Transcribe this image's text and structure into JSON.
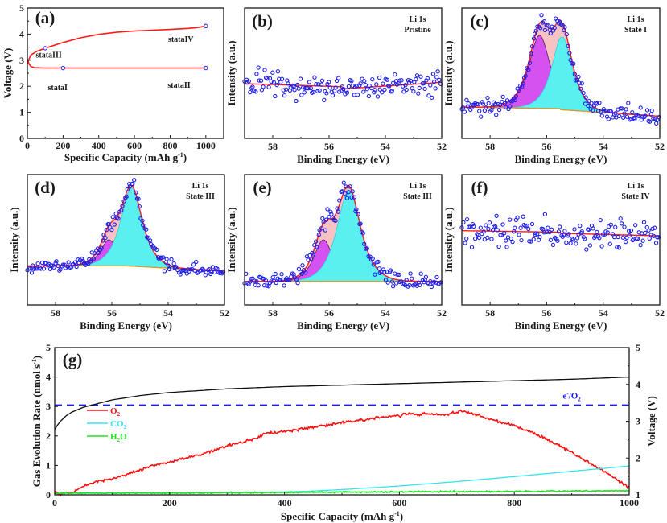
{
  "figure": {
    "colors": {
      "axis": "#1a1a1a",
      "fit": "#ff1a1a",
      "points": "#1f1fe6",
      "envelope_fill": "#f6c2c2",
      "peak1_fill": "#d652f0",
      "peak1_edge": "#5a1a6a",
      "peak2_fill": "#5af0f0",
      "peak2_edge": "#30d0e0",
      "background": "#e6961e",
      "o2": "#ff1010",
      "co2": "#30e6f0",
      "h2o": "#20e020",
      "voltage": "#111111",
      "ref_dash": "#1a1aff"
    }
  },
  "chart_data": [
    {
      "id": "a",
      "panel_label": "(a)",
      "type": "line",
      "xlabel": "Specific Capacity (mAh g",
      "xlabel_sup": "-1",
      "xlabel_end": ")",
      "ylabel": "Voltage (V)",
      "xlim": [
        0,
        1100
      ],
      "ylim": [
        0,
        5
      ],
      "xticks": [
        0,
        200,
        400,
        600,
        800,
        1000
      ],
      "yticks": [
        0,
        1,
        2,
        3,
        4,
        5
      ],
      "grid": false,
      "series": [
        {
          "name": "discharge",
          "x": [
            0,
            5,
            10,
            20,
            40,
            100,
            200,
            400,
            600,
            800,
            1000
          ],
          "y": [
            3.05,
            2.95,
            2.85,
            2.76,
            2.71,
            2.7,
            2.7,
            2.7,
            2.7,
            2.7,
            2.7
          ]
        },
        {
          "name": "charge",
          "x": [
            0,
            5,
            10,
            20,
            50,
            100,
            200,
            300,
            400,
            500,
            600,
            700,
            800,
            900,
            950,
            1000
          ],
          "y": [
            2.85,
            2.95,
            3.05,
            3.2,
            3.33,
            3.46,
            3.68,
            3.86,
            3.99,
            4.07,
            4.12,
            4.15,
            4.18,
            4.22,
            4.25,
            4.31
          ]
        }
      ],
      "markers": [
        {
          "x": 100,
          "y": 3.46
        },
        {
          "x": 200,
          "y": 2.7
        },
        {
          "x": 1000,
          "y": 2.7
        },
        {
          "x": 1000,
          "y": 4.31
        }
      ],
      "annotations": [
        {
          "text": "stataI",
          "x": 170,
          "y": 1.85
        },
        {
          "text": "stataII",
          "x": 850,
          "y": 1.95
        },
        {
          "text": "stataIII",
          "x": 120,
          "y": 3.1
        },
        {
          "text": "stataIV",
          "x": 860,
          "y": 3.7
        }
      ]
    },
    {
      "id": "b",
      "panel_label": "(b)",
      "type": "scatter",
      "title_lines": [
        "Li 1s",
        "Pristine"
      ],
      "xlabel": "Binding Energy (eV)",
      "ylabel": "Intensity (a.u.)",
      "xlim": [
        59,
        52
      ],
      "ylim": [
        0,
        1
      ],
      "xticks": [
        58,
        56,
        54,
        52
      ],
      "baseline": [
        0.42,
        0.38,
        0.43
      ],
      "noise": 0.07,
      "peaks": []
    },
    {
      "id": "c",
      "panel_label": "(c)",
      "type": "scatter",
      "title_lines": [
        "Li 1s",
        "State I"
      ],
      "xlabel": "Binding Energy (eV)",
      "ylabel": "Intensity (a.u.)",
      "xlim": [
        59,
        52
      ],
      "ylim": [
        0,
        1
      ],
      "xticks": [
        58,
        56,
        54,
        52
      ],
      "baseline": [
        0.24,
        0.22,
        0.17
      ],
      "noise": 0.05,
      "peaks": [
        {
          "center": 56.25,
          "height": 0.56,
          "fwhm": 0.95
        },
        {
          "center": 55.45,
          "height": 0.56,
          "fwhm": 0.9
        }
      ]
    },
    {
      "id": "d",
      "panel_label": "(d)",
      "type": "scatter",
      "title_lines": [
        "Li 1s",
        "State III"
      ],
      "xlabel": "Binding Energy (eV)",
      "ylabel": "Intensity (a.u.)",
      "xlim": [
        59,
        52
      ],
      "ylim": [
        0,
        1
      ],
      "xticks": [
        58,
        56,
        54,
        52
      ],
      "baseline": [
        0.3,
        0.3,
        0.26
      ],
      "noise": 0.04,
      "peaks": [
        {
          "center": 56.1,
          "height": 0.2,
          "fwhm": 0.75
        },
        {
          "center": 55.3,
          "height": 0.6,
          "fwhm": 0.95
        }
      ]
    },
    {
      "id": "e",
      "panel_label": "(e)",
      "type": "scatter",
      "title_lines": [
        "Li 1s",
        "State III"
      ],
      "xlabel": "Binding Energy (eV)",
      "ylabel": "Intensity (a.u.)",
      "xlim": [
        59,
        52
      ],
      "ylim": [
        0,
        1
      ],
      "xticks": [
        58,
        56,
        54,
        52
      ],
      "baseline": [
        0.18,
        0.18,
        0.18
      ],
      "noise": 0.05,
      "peaks": [
        {
          "center": 56.2,
          "height": 0.32,
          "fwhm": 0.85
        },
        {
          "center": 55.3,
          "height": 0.7,
          "fwhm": 1.05
        }
      ]
    },
    {
      "id": "f",
      "panel_label": "(f)",
      "type": "scatter",
      "title_lines": [
        "Li 1s",
        "State IV"
      ],
      "xlabel": "Binding Energy (eV)",
      "ylabel": "Intensity (a.u.)",
      "xlim": [
        59,
        52
      ],
      "ylim": [
        0,
        1
      ],
      "xticks": [
        58,
        56,
        54,
        52
      ],
      "baseline": [
        0.57,
        0.55,
        0.53
      ],
      "noise": 0.08,
      "peaks": []
    },
    {
      "id": "g",
      "panel_label": "(g)",
      "type": "line",
      "xlabel": "Specific Capacity (mAh g",
      "xlabel_sup": "-1",
      "xlabel_end": ")",
      "ylabel": "Gas Evolution Rate (nmol s",
      "ylabel_sup": "-1",
      "ylabel_end": ")",
      "y2label": "Voltage (V)",
      "xlim": [
        0,
        1000
      ],
      "ylim": [
        0,
        5
      ],
      "y2lim": [
        1,
        5
      ],
      "xticks": [
        0,
        200,
        400,
        600,
        800,
        1000
      ],
      "yticks": [
        0,
        1,
        2,
        3,
        4,
        5
      ],
      "y2ticks": [
        1,
        2,
        3,
        4,
        5
      ],
      "reference_line": {
        "label": "e",
        "label_sup": "-",
        "label_end": "/O",
        "label_sub": "2",
        "value": 3.05
      },
      "legend": {
        "placement": "center-left",
        "entries": [
          {
            "name": "O",
            "sub": "2",
            "key": "o2"
          },
          {
            "name": "CO",
            "sub": "2",
            "key": "co2"
          },
          {
            "name": "H",
            "sub": "2",
            "name_end": "O",
            "key": "h2o"
          }
        ]
      },
      "series": [
        {
          "name": "O2",
          "key": "o2",
          "axis": "left",
          "x": [
            0,
            10,
            20,
            30,
            50,
            80,
            100,
            150,
            170,
            200,
            250,
            300,
            350,
            370,
            400,
            450,
            500,
            550,
            600,
            620,
            680,
            700,
            710,
            750,
            800,
            850,
            900,
            950,
            1000
          ],
          "y": [
            0.1,
            0.02,
            0.06,
            0.08,
            0.3,
            0.48,
            0.55,
            0.85,
            1.0,
            1.1,
            1.35,
            1.65,
            1.92,
            2.1,
            2.15,
            2.3,
            2.45,
            2.58,
            2.7,
            2.75,
            2.72,
            2.8,
            2.85,
            2.62,
            2.35,
            1.95,
            1.45,
            0.88,
            0.25
          ]
        },
        {
          "name": "CO2",
          "key": "co2",
          "axis": "left",
          "x": [
            0,
            200,
            350,
            400,
            450,
            500,
            600,
            700,
            800,
            900,
            1000
          ],
          "y": [
            0.05,
            0.06,
            0.08,
            0.1,
            0.13,
            0.18,
            0.3,
            0.45,
            0.62,
            0.8,
            0.98
          ]
        },
        {
          "name": "H2O",
          "key": "h2o",
          "axis": "left",
          "x": [
            0,
            200,
            400,
            600,
            800,
            1000
          ],
          "y": [
            0.06,
            0.06,
            0.08,
            0.1,
            0.12,
            0.14
          ]
        },
        {
          "name": "Voltage",
          "key": "voltage",
          "axis": "right",
          "x": [
            0,
            5,
            10,
            20,
            30,
            50,
            100,
            150,
            200,
            300,
            400,
            500,
            600,
            700,
            800,
            900,
            1000
          ],
          "y": [
            2.78,
            2.9,
            3.0,
            3.15,
            3.25,
            3.38,
            3.58,
            3.7,
            3.78,
            3.88,
            3.94,
            3.98,
            4.02,
            4.06,
            4.1,
            4.14,
            4.2
          ]
        }
      ]
    }
  ]
}
